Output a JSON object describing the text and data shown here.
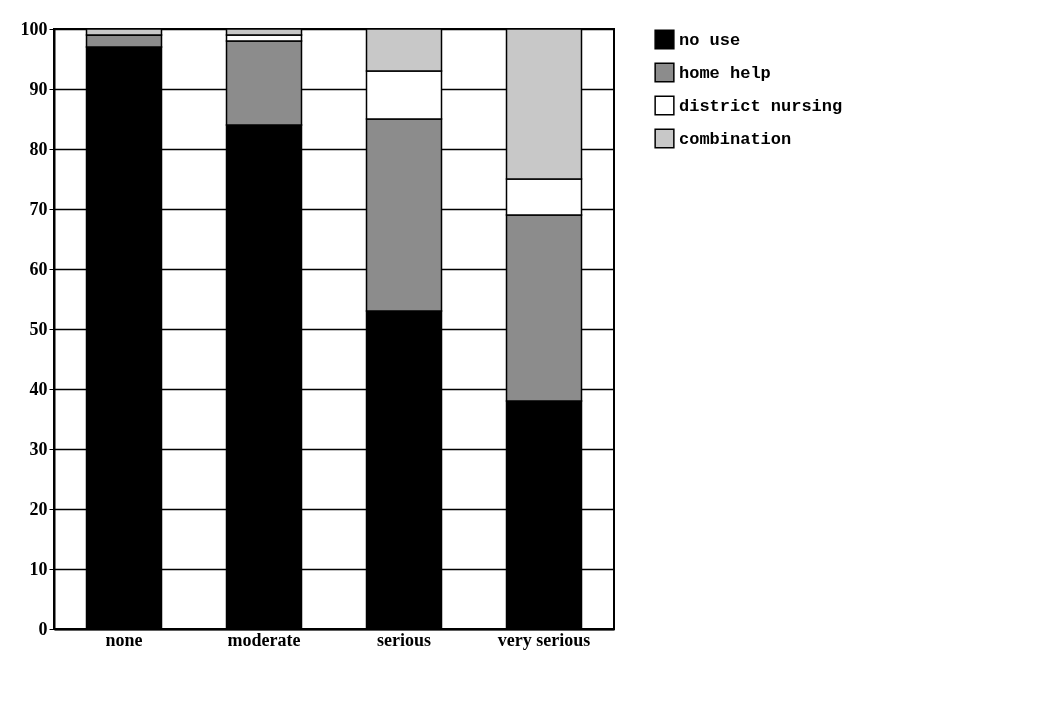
{
  "chart_data": {
    "type": "bar",
    "stacked": true,
    "categories": [
      "none",
      "moderate",
      "serious",
      "very serious"
    ],
    "series": [
      {
        "name": "no use",
        "color": "#000000",
        "values": [
          97,
          84,
          53,
          38
        ]
      },
      {
        "name": "home help",
        "color": "#8c8c8c",
        "values": [
          2,
          14,
          32,
          31
        ]
      },
      {
        "name": "district nursing",
        "color": "#ffffff",
        "values": [
          0,
          1,
          8,
          6
        ]
      },
      {
        "name": "combination",
        "color": "#c8c8c8",
        "values": [
          1,
          1,
          7,
          25
        ]
      }
    ],
    "ylim": [
      0,
      100
    ],
    "yticks": [
      0,
      10,
      20,
      30,
      40,
      50,
      60,
      70,
      80,
      90,
      100
    ],
    "grid": "y",
    "legend": "right"
  }
}
